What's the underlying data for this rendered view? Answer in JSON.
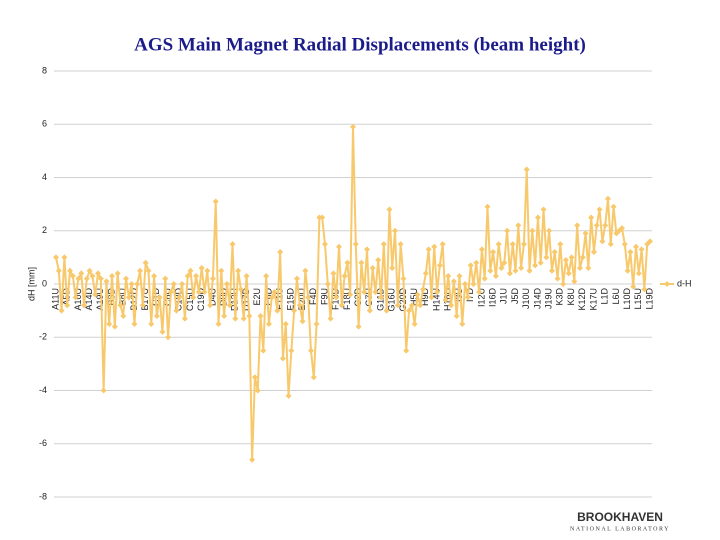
{
  "chart_data": {
    "type": "line",
    "title": "AGS Main Magnet Radial Displacements (beam height)",
    "ylabel": "dH [mm]",
    "ylim": [
      -8,
      8
    ],
    "yticks": [
      8,
      6,
      4,
      2,
      0,
      -2,
      -4,
      -6,
      -8
    ],
    "grid": true,
    "legend": "right",
    "categories": [
      "A11U",
      null,
      null,
      null,
      "A5D",
      null,
      null,
      null,
      "A10U",
      null,
      null,
      null,
      "A14D",
      null,
      null,
      null,
      "A19U",
      null,
      null,
      null,
      "B3D",
      null,
      null,
      null,
      "B8U",
      null,
      null,
      null,
      "B12D",
      null,
      null,
      null,
      "B17U",
      null,
      null,
      null,
      "C1D",
      null,
      null,
      null,
      "C6U",
      null,
      null,
      null,
      "C10D",
      null,
      null,
      null,
      "C15U",
      null,
      null,
      null,
      "C19D",
      null,
      null,
      null,
      "D4U",
      null,
      null,
      null,
      "D8D",
      null,
      null,
      null,
      "D13U",
      null,
      null,
      null,
      "D17D",
      null,
      null,
      null,
      "E2U",
      null,
      null,
      null,
      "E6D",
      null,
      null,
      null,
      "E11U",
      null,
      null,
      null,
      "E15D",
      null,
      null,
      null,
      "E20U",
      null,
      null,
      null,
      "F4D",
      null,
      null,
      null,
      "F9U",
      null,
      null,
      null,
      "F13D",
      null,
      null,
      null,
      "F18U",
      null,
      null,
      null,
      "G2D",
      null,
      null,
      null,
      "G7U",
      null,
      null,
      null,
      "G11D",
      null,
      null,
      null,
      "G16U",
      null,
      null,
      null,
      "G20D",
      null,
      null,
      null,
      "H5U",
      null,
      null,
      null,
      "H9D",
      null,
      null,
      null,
      "H14U",
      null,
      null,
      null,
      "H18D",
      null,
      null,
      null,
      "I3U",
      null,
      null,
      null,
      "I7D",
      null,
      null,
      null,
      "I12U",
      null,
      null,
      null,
      "I16D",
      null,
      null,
      null,
      "J1U",
      null,
      null,
      null,
      "J5D",
      null,
      null,
      null,
      "J10U",
      null,
      null,
      null,
      "J14D",
      null,
      null,
      null,
      "J19U",
      null,
      null,
      null,
      "K3D",
      null,
      null,
      null,
      "K8U",
      null,
      null,
      null,
      "K12D",
      null,
      null,
      null,
      "K17U",
      null,
      null,
      null,
      "L1D",
      null,
      null,
      null,
      "L6U",
      null,
      null,
      null,
      "L10D",
      null,
      null,
      null,
      "L15U",
      null,
      null,
      null,
      "L19D"
    ],
    "series": [
      {
        "name": "d-H",
        "color": "#f8c96c",
        "values": [
          1,
          0.5,
          -1,
          1,
          -0.8,
          0.5,
          0.3,
          -0.5,
          0.2,
          0.4,
          -0.8,
          0.2,
          0.5,
          0.3,
          -0.4,
          0.4,
          0.2,
          -4,
          0.1,
          -1.5,
          0.3,
          -1.6,
          0.4,
          -0.8,
          -1.2,
          0.2,
          -0.5,
          0,
          -1.5,
          0,
          0.5,
          -0.8,
          0.8,
          0.5,
          -1.5,
          0.3,
          -1.2,
          -0.5,
          -1.8,
          0.2,
          -2,
          -0.3,
          0,
          -1,
          -0.5,
          0,
          -1.3,
          0.3,
          0.5,
          -0.5,
          0.3,
          -0.3,
          0.6,
          -0.3,
          0.5,
          -0.8,
          0.2,
          3.1,
          -1.5,
          0.5,
          -1.2,
          0,
          -0.8,
          1.5,
          -1.3,
          0.5,
          -0.2,
          -1.3,
          0.3,
          -1.2,
          -6.6,
          -3.5,
          -4,
          -1.2,
          -2.5,
          0.3,
          -1.5,
          -0.5,
          -0.3,
          -1,
          1.2,
          -2.8,
          -1.5,
          -4.2,
          -2.5,
          -1,
          0.2,
          -0.8,
          -1.4,
          0.5,
          -0.5,
          -2.5,
          -3.5,
          -1.5,
          2.5,
          2.5,
          1.5,
          0,
          -1.3,
          0.4,
          -0.5,
          1.4,
          -0.8,
          0.3,
          0.8,
          -0.4,
          5.9,
          1.5,
          -1.6,
          0.8,
          -0.3,
          1.3,
          -1,
          0.6,
          -0.3,
          0.9,
          -0.5,
          1.5,
          -1,
          2.8,
          0.6,
          2,
          -0.8,
          1.5,
          0.2,
          -2.5,
          -1,
          -0.8,
          -1.5,
          -0.4,
          -0.8,
          -0.2,
          0.4,
          1.3,
          -0.5,
          1.4,
          -0.3,
          0.7,
          1.5,
          -0.6,
          0.3,
          -0.8,
          0.1,
          -1.2,
          0.3,
          -1.5,
          0,
          -0.5,
          0.7,
          0,
          0.8,
          -0.3,
          1.3,
          0.2,
          2.9,
          0.5,
          1.2,
          0.3,
          1.5,
          0.6,
          0.8,
          2,
          0.4,
          1.5,
          0.5,
          2.2,
          0.6,
          1.5,
          4.3,
          0.5,
          2,
          0.7,
          2.5,
          0.8,
          2.8,
          1,
          2,
          0.5,
          1.2,
          0.2,
          1.5,
          0,
          0.9,
          0.4,
          1,
          0.1,
          2.2,
          0.6,
          1,
          1.9,
          0.6,
          2.5,
          1.2,
          2.2,
          2.8,
          1.6,
          2.2,
          3.2,
          1.5,
          2.9,
          1.9,
          2,
          2.1,
          1.5,
          0.5,
          1.2,
          -0.1,
          1.4,
          0.4,
          1.3,
          -0.2,
          1.5,
          1.6
        ]
      }
    ],
    "logo": {
      "name": "BROOKHAVEN",
      "subtitle": "NATIONAL LABORATORY"
    }
  }
}
